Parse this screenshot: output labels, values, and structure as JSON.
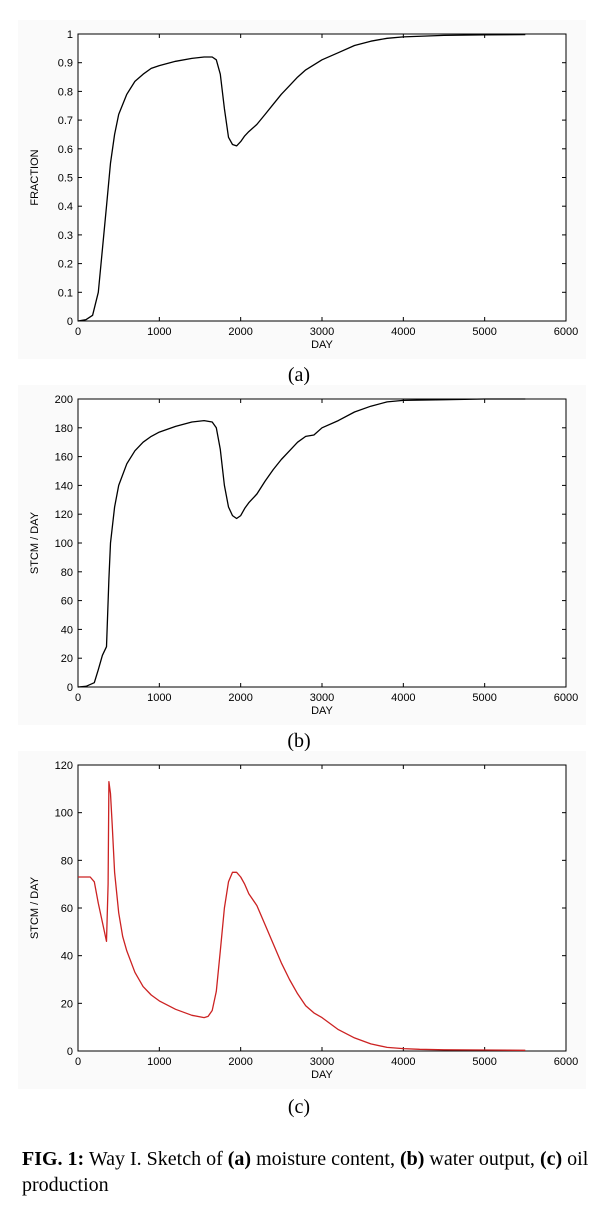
{
  "caption": {
    "fig_label": "FIG. 1:",
    "t1": " Way I. Sketch of ",
    "a_label": "(a)",
    "t2": " moisture content, ",
    "b_label": "(b)",
    "t3": " water output, ",
    "c_label": "(c)",
    "t4": " oil production"
  },
  "chart_data": [
    {
      "type": "line",
      "sublabel": "(a)",
      "xlabel": "DAY",
      "ylabel": "FRACTION",
      "xlim": [
        0,
        6000
      ],
      "ylim": [
        0,
        1
      ],
      "xticks": [
        0,
        1000,
        2000,
        3000,
        4000,
        5000,
        6000
      ],
      "yticks": [
        0,
        0.1,
        0.2,
        0.3,
        0.4,
        0.5,
        0.6,
        0.7,
        0.8,
        0.9,
        1
      ],
      "ytick_labels": [
        "0",
        "0.1",
        "0.2",
        "0.3",
        "0.4",
        "0.5",
        "0.6",
        "0.7",
        "0.8",
        "0.9",
        "1"
      ],
      "grid": false,
      "color": "#000000",
      "series": [
        {
          "x": [
            0,
            100,
            180,
            250,
            300,
            350,
            400,
            450,
            500,
            600,
            700,
            800,
            900,
            1000,
            1200,
            1400,
            1550,
            1650,
            1700,
            1750,
            1800,
            1850,
            1900,
            1950,
            2000,
            2050,
            2100,
            2200,
            2300,
            2400,
            2500,
            2600,
            2700,
            2800,
            3000,
            3200,
            3400,
            3600,
            3800,
            4000,
            4500,
            5000,
            5500
          ],
          "y": [
            0,
            0.005,
            0.02,
            0.1,
            0.25,
            0.4,
            0.55,
            0.65,
            0.72,
            0.79,
            0.835,
            0.86,
            0.88,
            0.89,
            0.905,
            0.915,
            0.92,
            0.92,
            0.91,
            0.86,
            0.74,
            0.64,
            0.615,
            0.61,
            0.625,
            0.645,
            0.66,
            0.685,
            0.72,
            0.755,
            0.79,
            0.82,
            0.85,
            0.875,
            0.91,
            0.935,
            0.96,
            0.975,
            0.985,
            0.99,
            0.995,
            0.997,
            0.998
          ]
        }
      ]
    },
    {
      "type": "line",
      "sublabel": "(b)",
      "xlabel": "DAY",
      "ylabel": "STCM / DAY",
      "xlim": [
        0,
        6000
      ],
      "ylim": [
        0,
        200
      ],
      "xticks": [
        0,
        1000,
        2000,
        3000,
        4000,
        5000,
        6000
      ],
      "yticks": [
        0,
        20,
        40,
        60,
        80,
        100,
        120,
        140,
        160,
        180,
        200
      ],
      "ytick_labels": [
        "0",
        "20",
        "40",
        "60",
        "80",
        "100",
        "120",
        "140",
        "160",
        "180",
        "200"
      ],
      "grid": false,
      "color": "#000000",
      "series": [
        {
          "x": [
            0,
            100,
            200,
            250,
            300,
            350,
            380,
            400,
            450,
            500,
            600,
            700,
            800,
            900,
            1000,
            1200,
            1400,
            1550,
            1650,
            1700,
            1750,
            1800,
            1850,
            1900,
            1950,
            2000,
            2050,
            2100,
            2200,
            2300,
            2400,
            2500,
            2600,
            2700,
            2800,
            2900,
            3000,
            3200,
            3400,
            3600,
            3800,
            4000,
            4500,
            5000,
            5500
          ],
          "y": [
            0,
            0.5,
            3,
            12,
            22,
            28,
            75,
            100,
            125,
            140,
            155,
            164,
            170,
            174,
            177,
            181,
            184,
            185,
            184,
            180,
            165,
            140,
            125,
            119,
            117,
            119,
            124,
            128,
            134,
            143,
            151,
            158,
            164,
            170,
            174,
            175,
            180,
            185,
            191,
            195,
            198,
            199,
            199.5,
            200,
            200
          ]
        }
      ]
    },
    {
      "type": "line",
      "sublabel": "(c)",
      "xlabel": "DAY",
      "ylabel": "STCM / DAY",
      "xlim": [
        0,
        6000
      ],
      "ylim": [
        0,
        120
      ],
      "xticks": [
        0,
        1000,
        2000,
        3000,
        4000,
        5000,
        6000
      ],
      "yticks": [
        0,
        20,
        40,
        60,
        80,
        100,
        120
      ],
      "ytick_labels": [
        "0",
        "20",
        "40",
        "60",
        "80",
        "100",
        "120"
      ],
      "grid": false,
      "color": "#cc2222",
      "series": [
        {
          "x": [
            0,
            100,
            150,
            200,
            250,
            300,
            350,
            370,
            380,
            400,
            420,
            450,
            500,
            550,
            600,
            700,
            800,
            900,
            1000,
            1200,
            1400,
            1550,
            1600,
            1650,
            1700,
            1750,
            1800,
            1850,
            1900,
            1950,
            2000,
            2050,
            2100,
            2200,
            2300,
            2400,
            2500,
            2600,
            2700,
            2800,
            2900,
            3000,
            3200,
            3400,
            3600,
            3800,
            4000,
            4200,
            4500,
            5000,
            5500
          ],
          "y": [
            73,
            73,
            73,
            71,
            62,
            54,
            46,
            70,
            113,
            108,
            95,
            75,
            58,
            48,
            42,
            33,
            27,
            23.5,
            21,
            17.5,
            15,
            14,
            14.5,
            17,
            25,
            42,
            60,
            71,
            75,
            75,
            73,
            70,
            66,
            61,
            53,
            45,
            37,
            30,
            24,
            19,
            16,
            14,
            9,
            5.5,
            3,
            1.5,
            1,
            0.7,
            0.5,
            0.4,
            0.3
          ]
        }
      ]
    }
  ]
}
